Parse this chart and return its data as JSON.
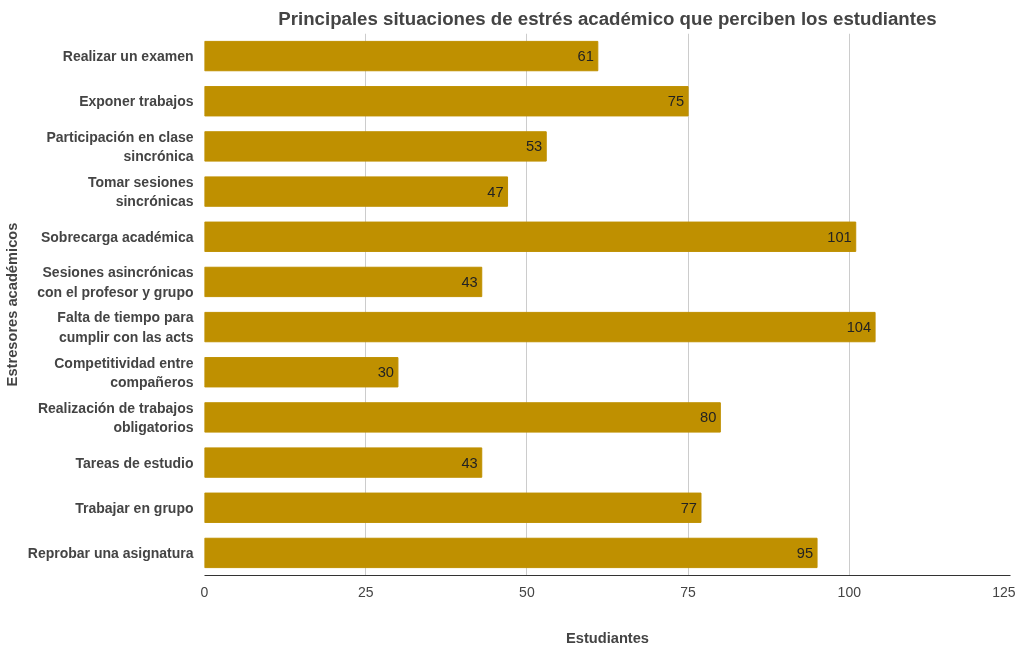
{
  "chart_data": {
    "type": "bar",
    "orientation": "horizontal",
    "title": "Principales situaciones de estrés académico que perciben los estudiantes",
    "xlabel": "Estudiantes",
    "ylabel": "Estresores académicos",
    "categories": [
      "Realizar un examen",
      "Exponer trabajos",
      "Participación en clase sincrónica",
      "Tomar sesiones sincrónicas",
      "Sobrecarga académica",
      "Sesiones asincrónicas con el profesor y grupo",
      "Falta de tiempo para cumplir con las acts",
      "Competitividad entre compañeros",
      "Realización de trabajos obligatorios",
      "Tareas de estudio",
      "Trabajar en grupo",
      "Reprobar una asignatura"
    ],
    "values": [
      61,
      75,
      53,
      47,
      101,
      43,
      104,
      30,
      80,
      43,
      77,
      95
    ],
    "color": "#bf9000",
    "xlim": [
      0,
      125
    ],
    "xticks": [
      0,
      25,
      50,
      75,
      100,
      125
    ],
    "grid": "x",
    "data_labels": true
  }
}
